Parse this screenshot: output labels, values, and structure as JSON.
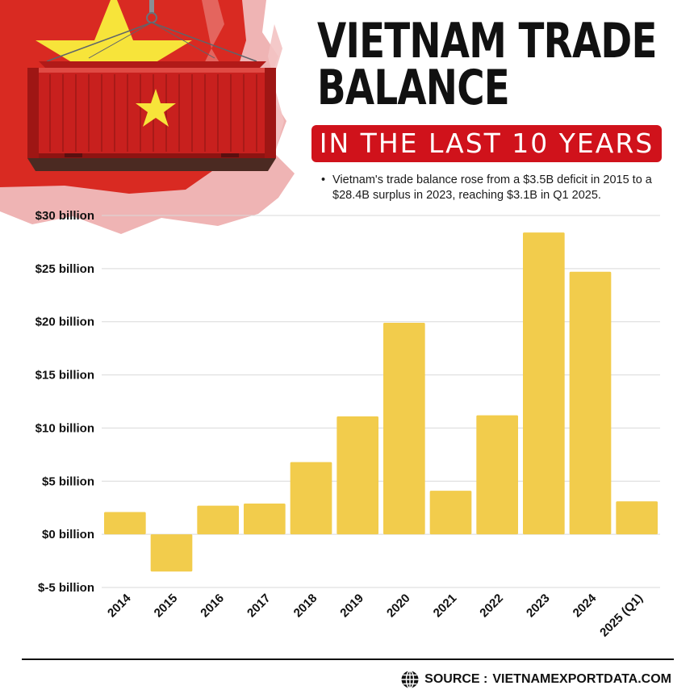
{
  "header": {
    "title_line1": "VIETNAM TRADE",
    "title_line2": "BALANCE",
    "subtitle": "IN THE LAST 10 YEARS",
    "note": "Vietnam's trade balance rose from a $3.5B deficit in 2015 to a $28.4B surplus in 2023, reaching $3.1B in Q1 2025."
  },
  "footer": {
    "source_label": "SOURCE :",
    "source_value": "VIETNAMEXPORTDATA.COM"
  },
  "colors": {
    "bar": "#f2cc4c",
    "banner": "#d0121b",
    "flag_red": "#d92a22",
    "flag_star": "#f7e43a",
    "grid": "#d9d9d9"
  },
  "icons": {
    "globe": "globe-icon",
    "star": "star-icon"
  },
  "chart_data": {
    "type": "bar",
    "categories": [
      "2014",
      "2015",
      "2016",
      "2017",
      "2018",
      "2019",
      "2020",
      "2021",
      "2022",
      "2023",
      "2024",
      "2025 (Q1)"
    ],
    "values": [
      2.1,
      -3.5,
      2.7,
      2.9,
      6.8,
      11.1,
      19.9,
      4.1,
      11.2,
      28.4,
      24.7,
      3.1
    ],
    "ylim": [
      -5,
      30
    ],
    "yticks": [
      30,
      25,
      20,
      15,
      10,
      5,
      0,
      -5
    ],
    "ytick_labels": [
      "$30 billion",
      "$25 billion",
      "$20 billion",
      "$15 billion",
      "$10 billion",
      "$5 billion",
      "$0 billion",
      "$-5 billion"
    ],
    "grid": true,
    "legend": "none"
  }
}
